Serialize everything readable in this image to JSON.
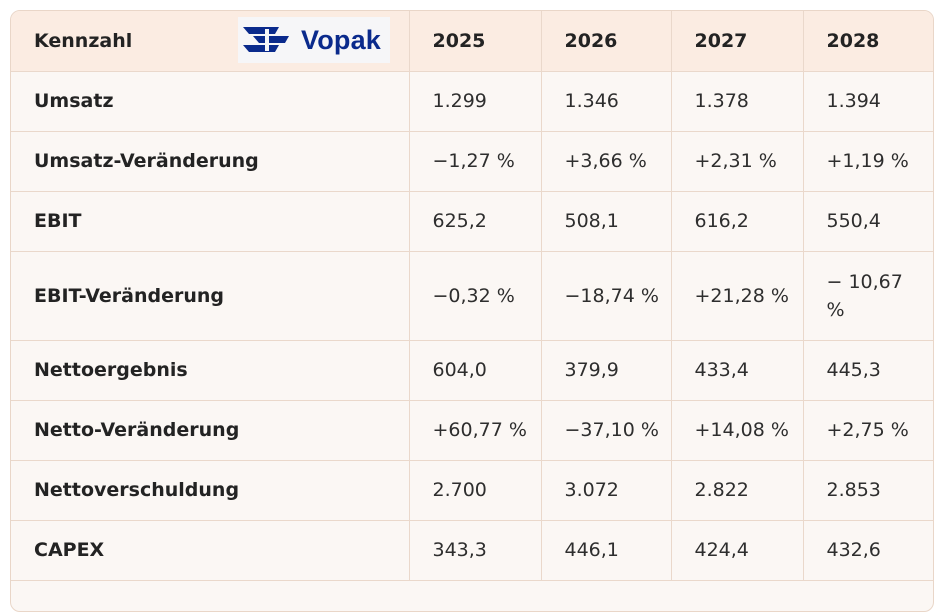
{
  "table": {
    "header": {
      "label": "Kennzahl",
      "years": [
        "2025",
        "2026",
        "2027",
        "2028"
      ]
    },
    "logo": {
      "text": "Vopak",
      "color": "#0a2a8c",
      "icon": "vopak-logo-icon"
    },
    "rows": [
      {
        "label": "Umsatz",
        "values": [
          "1.299",
          "1.346",
          "1.378",
          "1.394"
        ]
      },
      {
        "label": "Umsatz-Veränderung",
        "values": [
          "−1,27 %",
          "+3,66 %",
          "+2,31 %",
          "+1,19 %"
        ]
      },
      {
        "label": "EBIT",
        "values": [
          "625,2",
          "508,1",
          "616,2",
          "550,4"
        ]
      },
      {
        "label": "EBIT-Veränderung",
        "values": [
          "−0,32 %",
          "−18,74 %",
          "+21,28 %",
          "− 10,67 %"
        ]
      },
      {
        "label": "Nettoergebnis",
        "values": [
          "604,0",
          "379,9",
          "433,4",
          "445,3"
        ]
      },
      {
        "label": "Netto-Veränderung",
        "values": [
          "+60,77 %",
          "−37,10 %",
          "+14,08 %",
          "+2,75 %"
        ]
      },
      {
        "label": "Nettoverschuldung",
        "values": [
          "2.700",
          "3.072",
          "2.822",
          "2.853"
        ]
      },
      {
        "label": "CAPEX",
        "values": [
          "343,3",
          "446,1",
          "424,4",
          "432,6"
        ]
      }
    ]
  },
  "colors": {
    "header_bg": "#fbece2",
    "body_bg": "#fbf7f4",
    "border": "#ead8cb"
  }
}
